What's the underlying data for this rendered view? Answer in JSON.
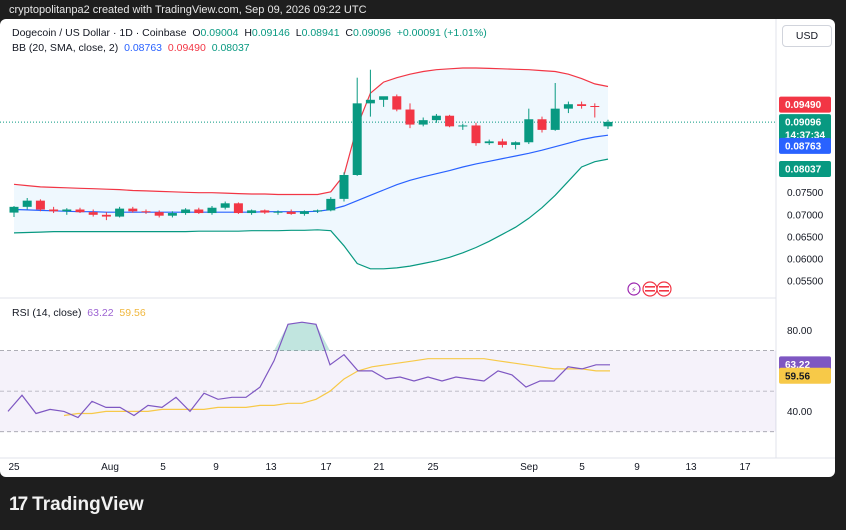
{
  "header": {
    "attribution": "cryptopolitanpa2 created with TradingView.com, Sep 09, 2026 09:22 UTC"
  },
  "legend": {
    "symbol": "Dogecoin / US Dollar · 1D · Coinbase",
    "o_label": "O",
    "o": "0.09004",
    "h_label": "H",
    "h": "0.09146",
    "l_label": "L",
    "l": "0.08941",
    "c_label": "C",
    "c": "0.09096",
    "change": "+0.00091 (+1.01%)",
    "bb_label": "BB (20, SMA, close, 2)",
    "bb_basis": "0.08763",
    "bb_upper": "0.09490",
    "bb_lower": "0.08037",
    "rsi_label": "RSI (14, close)",
    "rsi_value": "63.22",
    "rsi_ma": "59.56"
  },
  "currency_button": "USD",
  "price_tags": {
    "upper": "0.09490",
    "close": "0.09096",
    "countdown": "14:37:34",
    "basis": "0.08763",
    "lower": "0.08037",
    "rsi": "63.22",
    "rsi_ma": "59.56"
  },
  "brand": {
    "name": "TradingView",
    "logo_text": "17"
  },
  "colors": {
    "up": "#089981",
    "down": "#f23645",
    "bb_basis": "#2962ff",
    "bb_upper": "#f23645",
    "bb_lower": "#089981",
    "rsi": "#7e57c2",
    "rsi_ma": "#f7c948"
  },
  "chart_data": [
    {
      "type": "candlestick",
      "price_ticks": [
        "0.07500",
        "0.07000",
        "0.06500",
        "0.06000",
        "0.05500"
      ],
      "x_ticks": [
        "25",
        "Aug",
        "5",
        "9",
        "13",
        "17",
        "21",
        "25",
        "Sep",
        "5",
        "9",
        "13",
        "17"
      ],
      "ylim": [
        0.053,
        0.105
      ],
      "candles": [
        {
          "o": 0.0705,
          "h": 0.072,
          "l": 0.0695,
          "c": 0.0718
        },
        {
          "o": 0.0718,
          "h": 0.0738,
          "l": 0.0712,
          "c": 0.0732
        },
        {
          "o": 0.0732,
          "h": 0.0735,
          "l": 0.0708,
          "c": 0.0712
        },
        {
          "o": 0.0712,
          "h": 0.0718,
          "l": 0.0704,
          "c": 0.0708
        },
        {
          "o": 0.0708,
          "h": 0.0715,
          "l": 0.07,
          "c": 0.0712
        },
        {
          "o": 0.0712,
          "h": 0.0716,
          "l": 0.0704,
          "c": 0.0706
        },
        {
          "o": 0.0706,
          "h": 0.0712,
          "l": 0.0696,
          "c": 0.07
        },
        {
          "o": 0.07,
          "h": 0.0706,
          "l": 0.0688,
          "c": 0.0696
        },
        {
          "o": 0.0696,
          "h": 0.0718,
          "l": 0.0694,
          "c": 0.0714
        },
        {
          "o": 0.0714,
          "h": 0.0718,
          "l": 0.0705,
          "c": 0.0708
        },
        {
          "o": 0.0708,
          "h": 0.0712,
          "l": 0.0702,
          "c": 0.0706
        },
        {
          "o": 0.0706,
          "h": 0.071,
          "l": 0.0694,
          "c": 0.0698
        },
        {
          "o": 0.0698,
          "h": 0.0708,
          "l": 0.0694,
          "c": 0.0704
        },
        {
          "o": 0.0704,
          "h": 0.0715,
          "l": 0.07,
          "c": 0.0712
        },
        {
          "o": 0.0712,
          "h": 0.0716,
          "l": 0.0702,
          "c": 0.0704
        },
        {
          "o": 0.0704,
          "h": 0.072,
          "l": 0.07,
          "c": 0.0716
        },
        {
          "o": 0.0716,
          "h": 0.073,
          "l": 0.0712,
          "c": 0.0726
        },
        {
          "o": 0.0726,
          "h": 0.0728,
          "l": 0.0702,
          "c": 0.0704
        },
        {
          "o": 0.0704,
          "h": 0.0712,
          "l": 0.07,
          "c": 0.071
        },
        {
          "o": 0.071,
          "h": 0.0712,
          "l": 0.0702,
          "c": 0.0705
        },
        {
          "o": 0.0705,
          "h": 0.071,
          "l": 0.07,
          "c": 0.0707
        },
        {
          "o": 0.0707,
          "h": 0.0712,
          "l": 0.07,
          "c": 0.0702
        },
        {
          "o": 0.0702,
          "h": 0.071,
          "l": 0.0698,
          "c": 0.0708
        },
        {
          "o": 0.0708,
          "h": 0.0712,
          "l": 0.0704,
          "c": 0.071
        },
        {
          "o": 0.071,
          "h": 0.074,
          "l": 0.0708,
          "c": 0.0736
        },
        {
          "o": 0.0736,
          "h": 0.0796,
          "l": 0.073,
          "c": 0.079
        },
        {
          "o": 0.079,
          "h": 0.101,
          "l": 0.0788,
          "c": 0.0952
        },
        {
          "o": 0.0952,
          "h": 0.1028,
          "l": 0.0922,
          "c": 0.096
        },
        {
          "o": 0.096,
          "h": 0.0966,
          "l": 0.0944,
          "c": 0.0968
        },
        {
          "o": 0.0968,
          "h": 0.0972,
          "l": 0.0934,
          "c": 0.0938
        },
        {
          "o": 0.0938,
          "h": 0.0952,
          "l": 0.0896,
          "c": 0.0904
        },
        {
          "o": 0.0904,
          "h": 0.092,
          "l": 0.09,
          "c": 0.0914
        },
        {
          "o": 0.0914,
          "h": 0.0928,
          "l": 0.0908,
          "c": 0.0924
        },
        {
          "o": 0.0924,
          "h": 0.0926,
          "l": 0.0898,
          "c": 0.09
        },
        {
          "o": 0.09,
          "h": 0.0906,
          "l": 0.0892,
          "c": 0.0902
        },
        {
          "o": 0.0902,
          "h": 0.0908,
          "l": 0.0856,
          "c": 0.0862
        },
        {
          "o": 0.0862,
          "h": 0.087,
          "l": 0.0858,
          "c": 0.0866
        },
        {
          "o": 0.0866,
          "h": 0.0872,
          "l": 0.0852,
          "c": 0.0858
        },
        {
          "o": 0.0858,
          "h": 0.0866,
          "l": 0.0848,
          "c": 0.0864
        },
        {
          "o": 0.0864,
          "h": 0.094,
          "l": 0.086,
          "c": 0.0916
        },
        {
          "o": 0.0916,
          "h": 0.0922,
          "l": 0.0886,
          "c": 0.0892
        },
        {
          "o": 0.0892,
          "h": 0.0998,
          "l": 0.089,
          "c": 0.094
        },
        {
          "o": 0.094,
          "h": 0.0956,
          "l": 0.093,
          "c": 0.095
        },
        {
          "o": 0.095,
          "h": 0.0956,
          "l": 0.094,
          "c": 0.0946
        },
        {
          "o": 0.0946,
          "h": 0.0952,
          "l": 0.092,
          "c": 0.0944
        },
        {
          "o": 0.09,
          "h": 0.0915,
          "l": 0.0894,
          "c": 0.091
        }
      ],
      "bb_upper": [
        0.0769,
        0.0766,
        0.0763,
        0.0762,
        0.0761,
        0.076,
        0.0759,
        0.0758,
        0.0757,
        0.0755,
        0.0754,
        0.0753,
        0.0752,
        0.0751,
        0.075,
        0.075,
        0.0749,
        0.0748,
        0.0747,
        0.0747,
        0.0746,
        0.0746,
        0.0746,
        0.0746,
        0.0752,
        0.079,
        0.09,
        0.0975,
        0.1,
        0.101,
        0.1018,
        0.1024,
        0.1028,
        0.103,
        0.1032,
        0.1032,
        0.1031,
        0.103,
        0.1029,
        0.1028,
        0.1026,
        0.1024,
        0.1018,
        0.1008,
        0.0996,
        0.099
      ],
      "bb_basis": [
        0.0712,
        0.0711,
        0.071,
        0.0709,
        0.0708,
        0.0707,
        0.0707,
        0.0706,
        0.0706,
        0.0706,
        0.0706,
        0.0706,
        0.0706,
        0.0706,
        0.0706,
        0.0706,
        0.0706,
        0.0706,
        0.0706,
        0.0707,
        0.0707,
        0.0707,
        0.0707,
        0.0708,
        0.0712,
        0.072,
        0.0732,
        0.0744,
        0.0756,
        0.0768,
        0.0778,
        0.0786,
        0.0793,
        0.08,
        0.0808,
        0.0815,
        0.0821,
        0.0827,
        0.0833,
        0.0839,
        0.0846,
        0.0854,
        0.0862,
        0.087,
        0.0876,
        0.088
      ],
      "bb_lower": [
        0.0659,
        0.066,
        0.0661,
        0.0662,
        0.0662,
        0.0662,
        0.0662,
        0.0662,
        0.0662,
        0.0662,
        0.0662,
        0.0662,
        0.0662,
        0.0662,
        0.0663,
        0.0663,
        0.0663,
        0.0663,
        0.0664,
        0.0664,
        0.0664,
        0.0665,
        0.0665,
        0.0666,
        0.0664,
        0.063,
        0.059,
        0.0578,
        0.0578,
        0.058,
        0.0584,
        0.059,
        0.0596,
        0.0604,
        0.0614,
        0.0626,
        0.064,
        0.0656,
        0.0672,
        0.0692,
        0.0716,
        0.0744,
        0.0776,
        0.0808,
        0.082,
        0.0826
      ]
    },
    {
      "type": "line",
      "title": "RSI (14, close)",
      "y_ticks": [
        "80.00",
        "40.00"
      ],
      "ylim": [
        20,
        92
      ],
      "overbought": 70,
      "middle": 50,
      "oversold": 30,
      "series": [
        {
          "name": "RSI",
          "values": [
            40,
            48,
            39,
            41,
            40,
            37,
            45,
            42,
            42,
            38,
            43,
            42,
            47,
            40,
            49,
            46,
            47,
            47,
            52,
            65,
            83,
            84,
            83,
            63,
            68,
            60,
            60,
            56,
            57,
            55,
            57,
            55,
            57,
            56,
            55,
            60,
            58,
            52,
            55,
            55,
            62,
            61,
            63,
            63
          ]
        },
        {
          "name": "MA",
          "values": [
            38,
            39,
            39,
            40,
            40,
            40,
            40,
            41,
            41,
            41,
            41,
            42,
            42,
            42,
            43,
            43,
            44,
            44,
            46,
            50,
            56,
            60,
            62,
            63,
            64,
            65,
            66,
            66,
            66,
            66,
            66,
            65,
            64,
            63,
            62,
            61,
            61,
            61,
            60,
            60
          ]
        }
      ]
    }
  ]
}
